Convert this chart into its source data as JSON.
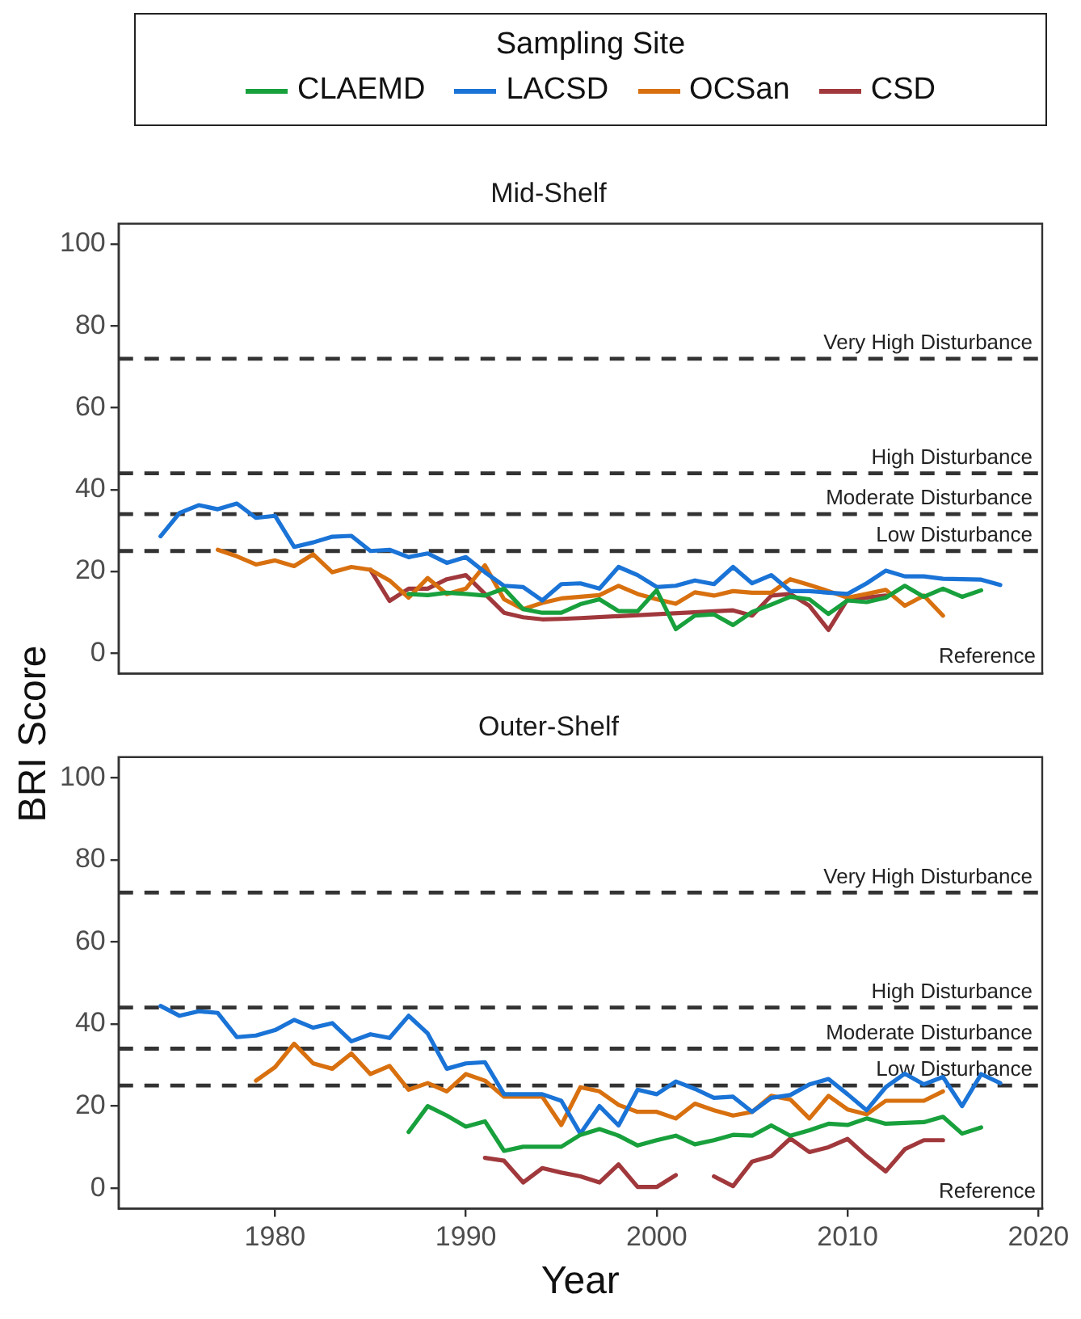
{
  "chart_data": [
    {
      "type": "line",
      "title": "Mid-Shelf",
      "ylabel": "BRI Score",
      "legend": "top",
      "legend_title": "Sampling Site",
      "tick_labels": "y",
      "xlim": [
        1971.8,
        2020.2
      ],
      "xticks": [
        1980,
        1990,
        2000,
        2010,
        2020
      ],
      "ylim": [
        -5,
        105
      ],
      "yticks": [
        0,
        20,
        40,
        60,
        80,
        100
      ],
      "series": [
        {
          "name": "CLAEMD",
          "color": "#18a03c",
          "x": [
            1987,
            1988,
            1989,
            1990,
            1991,
            1992,
            1993,
            1994,
            1995,
            1996,
            1997,
            1998,
            1999,
            2000,
            2001,
            2002,
            2003,
            2004,
            2005,
            2006,
            2007,
            2008,
            2009,
            2010,
            2011,
            2012,
            2013,
            2014,
            2015,
            2016,
            2017
          ],
          "values": [
            14.5,
            14.2,
            14.8,
            14.5,
            14.1,
            15.8,
            10.8,
            9.9,
            9.9,
            12,
            13.2,
            10.3,
            10.3,
            15.4,
            5.9,
            9.2,
            9.5,
            6.9,
            10.1,
            11.9,
            13.8,
            13.2,
            9.6,
            12.9,
            12.5,
            13.6,
            16.5,
            13.8,
            15.8,
            13.8,
            15.4
          ]
        },
        {
          "name": "LACSD",
          "color": "#1a73d6",
          "x": [
            1974,
            1975,
            1976,
            1977,
            1978,
            1979,
            1980,
            1981,
            1982,
            1983,
            1984,
            1985,
            1986,
            1987,
            1988,
            1989,
            1990,
            1991,
            1992,
            1993,
            1994,
            1995,
            1996,
            1997,
            1998,
            1999,
            2000,
            2001,
            2002,
            2003,
            2004,
            2005,
            2006,
            2007,
            2008,
            2009,
            2010,
            2011,
            2012,
            2013,
            2014,
            2015,
            2016,
            2017,
            2018
          ],
          "values": [
            28.6,
            34.3,
            36.2,
            35.2,
            36.6,
            33.1,
            33.6,
            26,
            27.1,
            28.5,
            28.7,
            25,
            25.3,
            23.5,
            24.4,
            22.1,
            23.5,
            19.8,
            16.5,
            16.2,
            12.9,
            16.9,
            17.1,
            15.8,
            21.1,
            19.1,
            16.2,
            16.5,
            17.8,
            16.9,
            21.1,
            17.1,
            19.1,
            15.2,
            15.2,
            14.8,
            14.5,
            17.1,
            20.2,
            18.8,
            18.8,
            18.2,
            18.1,
            18,
            16.7
          ]
        },
        {
          "name": "OCSan",
          "color": "#d8700f",
          "x": [
            1977,
            1978,
            1979,
            1980,
            1981,
            1982,
            1983,
            1984,
            1985,
            1986,
            1987,
            1988,
            1989,
            1990,
            1991,
            1992,
            1993,
            1994,
            1995,
            1996,
            1997,
            1998,
            1999,
            2000,
            2001,
            2002,
            2003,
            2004,
            2005,
            2006,
            2007,
            2008,
            2009,
            2010,
            2011,
            2012,
            2013,
            2014,
            2015
          ],
          "values": [
            25.3,
            23.7,
            21.7,
            22.7,
            21.3,
            24.2,
            19.8,
            21.1,
            20.4,
            17.8,
            13.6,
            18.4,
            14.5,
            15.8,
            21.5,
            13.2,
            10.8,
            12.3,
            13.4,
            13.8,
            14.2,
            16.5,
            14.5,
            13.2,
            12.1,
            14.9,
            14.1,
            15.2,
            14.8,
            14.8,
            18.1,
            16.7,
            15.2,
            13.6,
            14.5,
            15.5,
            11.6,
            14.1,
            9.2
          ]
        },
        {
          "name": "CSD",
          "color": "#a0383c",
          "x": [
            1985,
            1986,
            1987,
            1988,
            1989,
            1990,
            1991,
            1992,
            1993,
            1994,
            1995,
            1996,
            2004,
            2005,
            2006,
            2007,
            2008,
            2009,
            2010,
            2011,
            2012
          ],
          "values": [
            20.4,
            12.8,
            15.8,
            15.8,
            18.1,
            19.1,
            14.5,
            9.9,
            8.8,
            8.3,
            8.4,
            8.6,
            10.5,
            9.2,
            14.1,
            14.5,
            11.6,
            5.7,
            13.2,
            13.6,
            14.1
          ]
        }
      ],
      "ref_lines": [
        {
          "axis": "y",
          "value": 72,
          "label": "Very High Disturbance",
          "color": "#333333",
          "line_style": "dashed"
        },
        {
          "axis": "y",
          "value": 44,
          "label": "High Disturbance",
          "color": "#333333",
          "line_style": "dashed"
        },
        {
          "axis": "y",
          "value": 34,
          "label": "Moderate Disturbance",
          "color": "#333333",
          "line_style": "dashed"
        },
        {
          "axis": "y",
          "value": 25,
          "label": "Low Disturbance",
          "color": "#333333",
          "line_style": "dashed"
        }
      ],
      "annotations": [
        "Reference"
      ]
    },
    {
      "type": "line",
      "title": "Outer-Shelf",
      "xlabel": "Year",
      "xlim": [
        1971.8,
        2020.2
      ],
      "xticks": [
        1980,
        1990,
        2000,
        2010,
        2020
      ],
      "ylim": [
        -5,
        105
      ],
      "yticks": [
        0,
        20,
        40,
        60,
        80,
        100
      ],
      "series": [
        {
          "color": "#18a03c",
          "x": [
            1987,
            1988,
            1989,
            1990,
            1991,
            1992,
            1993,
            1994,
            1995,
            1996,
            1997,
            1998,
            1999,
            2000,
            2001,
            2002,
            2003,
            2004,
            2005,
            2006,
            2007,
            2008,
            2009,
            2010,
            2011,
            2012,
            2013,
            2014,
            2015,
            2016,
            2017
          ],
          "values": [
            13.7,
            20,
            17.7,
            15,
            16.3,
            9.1,
            10.1,
            10.1,
            10.1,
            13,
            14.4,
            12.8,
            10.4,
            11.7,
            12.8,
            10.7,
            11.7,
            13,
            12.8,
            15.3,
            12.8,
            14.1,
            15.7,
            15.4,
            17,
            15.7,
            15.9,
            16.1,
            17.4,
            13.3,
            14.8
          ]
        },
        {
          "color": "#1a73d6",
          "x": [
            1974,
            1975,
            1976,
            1977,
            1978,
            1979,
            1980,
            1981,
            1982,
            1983,
            1984,
            1985,
            1986,
            1987,
            1988,
            1989,
            1990,
            1991,
            1992,
            1993,
            1994,
            1995,
            1996,
            1997,
            1998,
            1999,
            2000,
            2001,
            2002,
            2003,
            2004,
            2005,
            2006,
            2007,
            2008,
            2009,
            2010,
            2011,
            2012,
            2013,
            2014,
            2015,
            2016,
            2017,
            2018
          ],
          "values": [
            44.4,
            42,
            43.1,
            42.7,
            36.8,
            37.2,
            38.5,
            41,
            39.1,
            40.2,
            35.8,
            37.5,
            36.6,
            42,
            37.7,
            29.1,
            30.4,
            30.7,
            22.9,
            22.9,
            22.9,
            21.3,
            13.3,
            20,
            15.3,
            24,
            22.9,
            26,
            24.2,
            22,
            22.3,
            18.6,
            22,
            22.7,
            25.3,
            26.6,
            22.9,
            19,
            24.6,
            27.9,
            25.3,
            27.1,
            20,
            27.8,
            25.6
          ]
        },
        {
          "color": "#d8700f",
          "x": [
            1979,
            1980,
            1981,
            1982,
            1983,
            1984,
            1985,
            1986,
            1987,
            1988,
            1989,
            1990,
            1991,
            1992,
            1993,
            1994,
            1995,
            1996,
            1997,
            1998,
            1999,
            2000,
            2001,
            2002,
            2003,
            2004,
            2005,
            2006,
            2007,
            2008,
            2009,
            2010,
            2011,
            2012,
            2013,
            2014,
            2015
          ],
          "values": [
            26.2,
            29.5,
            35.2,
            30.4,
            29.1,
            32.8,
            27.8,
            29.8,
            24,
            25.6,
            23.6,
            27.8,
            26.2,
            22.3,
            22.3,
            22.3,
            15.4,
            24.6,
            23.6,
            20.3,
            18.6,
            18.6,
            17,
            20.6,
            19,
            17.7,
            18.6,
            22.5,
            21.6,
            17,
            22.5,
            19.2,
            18,
            21.3,
            21.3,
            21.3,
            23.6
          ]
        },
        {
          "color": "#a0383c",
          "x": [
            1991,
            1992,
            1993,
            1994,
            1995,
            1996,
            1997,
            1998,
            1999,
            2000,
            2001,
            2002,
            2003,
            2004,
            2005,
            2006,
            2007,
            2008,
            2009,
            2010,
            2011,
            2012,
            2013,
            2014,
            2015
          ],
          "values": [
            7.4,
            6.7,
            1.4,
            4.9,
            3.8,
            2.9,
            1.4,
            5.8,
            0.3,
            0.3,
            3.2,
            null,
            2.9,
            0.5,
            6.5,
            7.8,
            12.1,
            8.8,
            10,
            12,
            7.8,
            4.1,
            9.5,
            11.7,
            11.7
          ]
        }
      ],
      "ref_lines": [
        {
          "axis": "y",
          "value": 72,
          "label": "Very High Disturbance",
          "color": "#333333",
          "line_style": "dashed"
        },
        {
          "axis": "y",
          "value": 44,
          "label": "High Disturbance",
          "color": "#333333",
          "line_style": "dashed"
        },
        {
          "axis": "y",
          "value": 34,
          "label": "Moderate Disturbance",
          "color": "#333333",
          "line_style": "dashed"
        },
        {
          "axis": "y",
          "value": 25,
          "label": "Low Disturbance",
          "color": "#333333",
          "line_style": "dashed"
        }
      ],
      "annotations": [
        "Reference"
      ]
    }
  ]
}
